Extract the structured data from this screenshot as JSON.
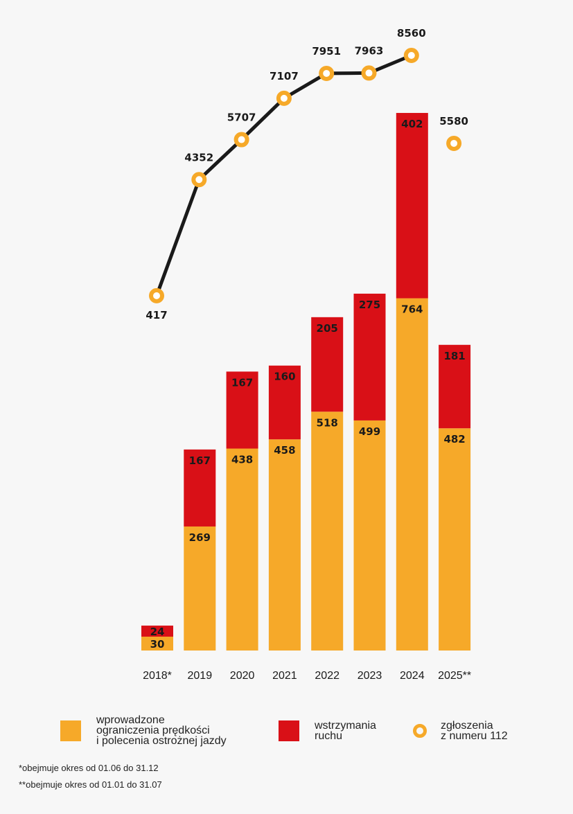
{
  "chart_data": {
    "type": "bar",
    "categories": [
      "2018*",
      "2019",
      "2020",
      "2021",
      "2022",
      "2023",
      "2024",
      "2025**"
    ],
    "series": [
      {
        "name": "wprowadzone ograniczenia prędkości i polecenia ostrożnej jazdy",
        "values": [
          30,
          269,
          438,
          458,
          518,
          499,
          764,
          482
        ],
        "color": "#f6a929"
      },
      {
        "name": "wstrzymania ruchu",
        "values": [
          24,
          167,
          167,
          160,
          205,
          275,
          402,
          181
        ],
        "color": "#d91017"
      }
    ],
    "line_series": {
      "name": "zgłoszenia z numeru 112",
      "values": [
        417,
        4352,
        5707,
        7107,
        7951,
        7963,
        8560,
        5580
      ],
      "color": "#f6a929",
      "connected_until_index": 6
    },
    "stacked": true
  },
  "legend": {
    "orange_label": "wprowadzone\nograniczenia prędkości\ni polecenia ostrożnej jazdy",
    "red_label": "wstrzymania\nruchu",
    "circle_label": "zgłoszenia\nz numeru 112"
  },
  "footnotes": {
    "note1": "*obejmuje okres od 01.06 do 31.12",
    "note2": "**obejmuje okres od 01.01 do 31.07"
  }
}
